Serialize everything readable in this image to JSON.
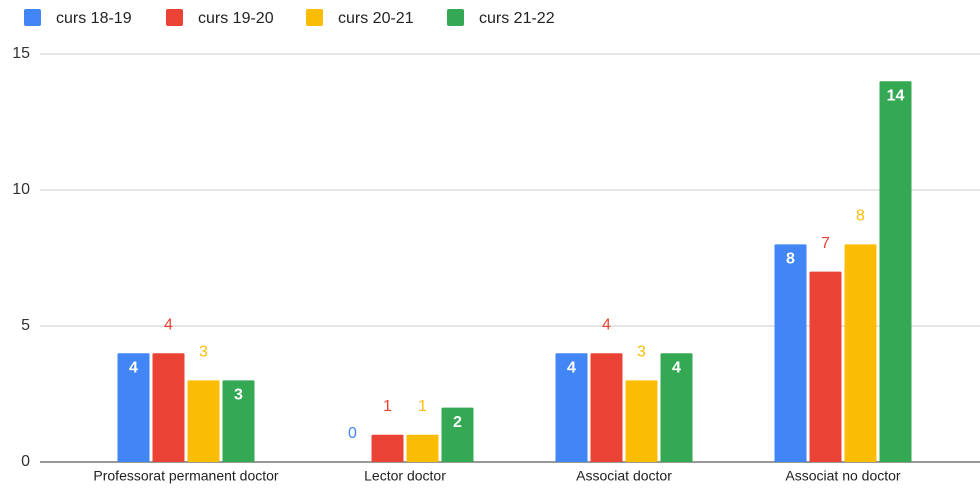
{
  "chart_data": {
    "type": "bar",
    "categories": [
      "Professorat permanent doctor",
      "Lector doctor",
      "Associat doctor",
      "Associat no doctor"
    ],
    "series": [
      {
        "name": "curs 18-19",
        "color": "#4285f4",
        "values": [
          4,
          0,
          4,
          8
        ]
      },
      {
        "name": "curs 19-20",
        "color": "#ea4335",
        "values": [
          4,
          1,
          4,
          7
        ]
      },
      {
        "name": "curs 20-21",
        "color": "#fbbc04",
        "values": [
          3,
          1,
          3,
          8
        ]
      },
      {
        "name": "curs 21-22",
        "color": "#34a853",
        "values": [
          3,
          2,
          4,
          14
        ]
      }
    ],
    "ylim": [
      0,
      15
    ],
    "yticks": [
      0,
      5,
      10,
      15
    ],
    "grid": true,
    "legend": "top"
  }
}
